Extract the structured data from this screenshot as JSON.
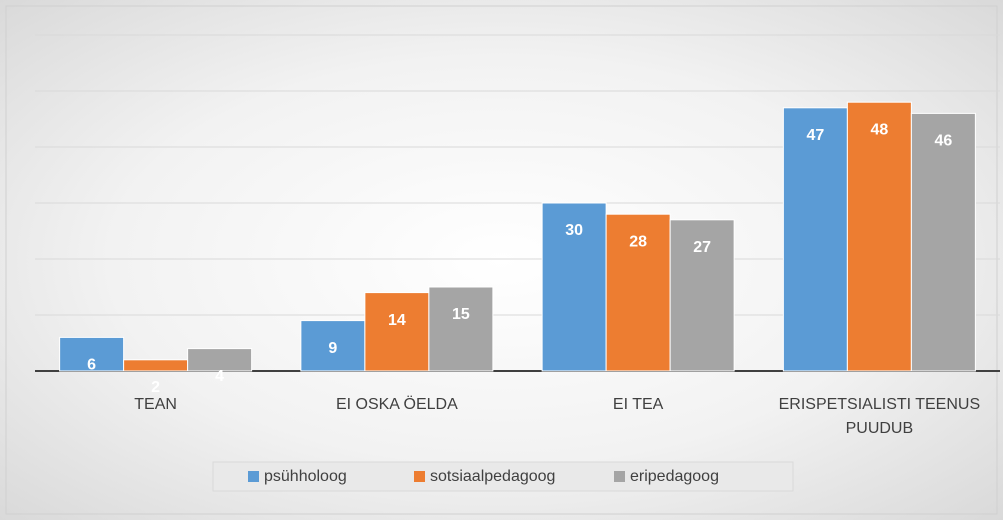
{
  "chart_data": {
    "type": "bar",
    "categories": [
      "TEAN",
      "EI OSKA ÖELDA",
      "EI TEA",
      "ERISPETSIALISTI TEENUS PUUDUB"
    ],
    "series": [
      {
        "name": "psühholoog",
        "color": "#5b9bd5",
        "values": [
          6,
          9,
          30,
          47
        ]
      },
      {
        "name": "sotsiaalpedagoog",
        "color": "#ed7d31",
        "values": [
          2,
          14,
          28,
          48
        ]
      },
      {
        "name": "eripedagoog",
        "color": "#a5a5a5",
        "values": [
          4,
          15,
          27,
          46
        ]
      }
    ],
    "ylim": [
      0,
      60
    ],
    "yticks": [
      0,
      10,
      20,
      30,
      40,
      50,
      60
    ],
    "grid": true
  }
}
